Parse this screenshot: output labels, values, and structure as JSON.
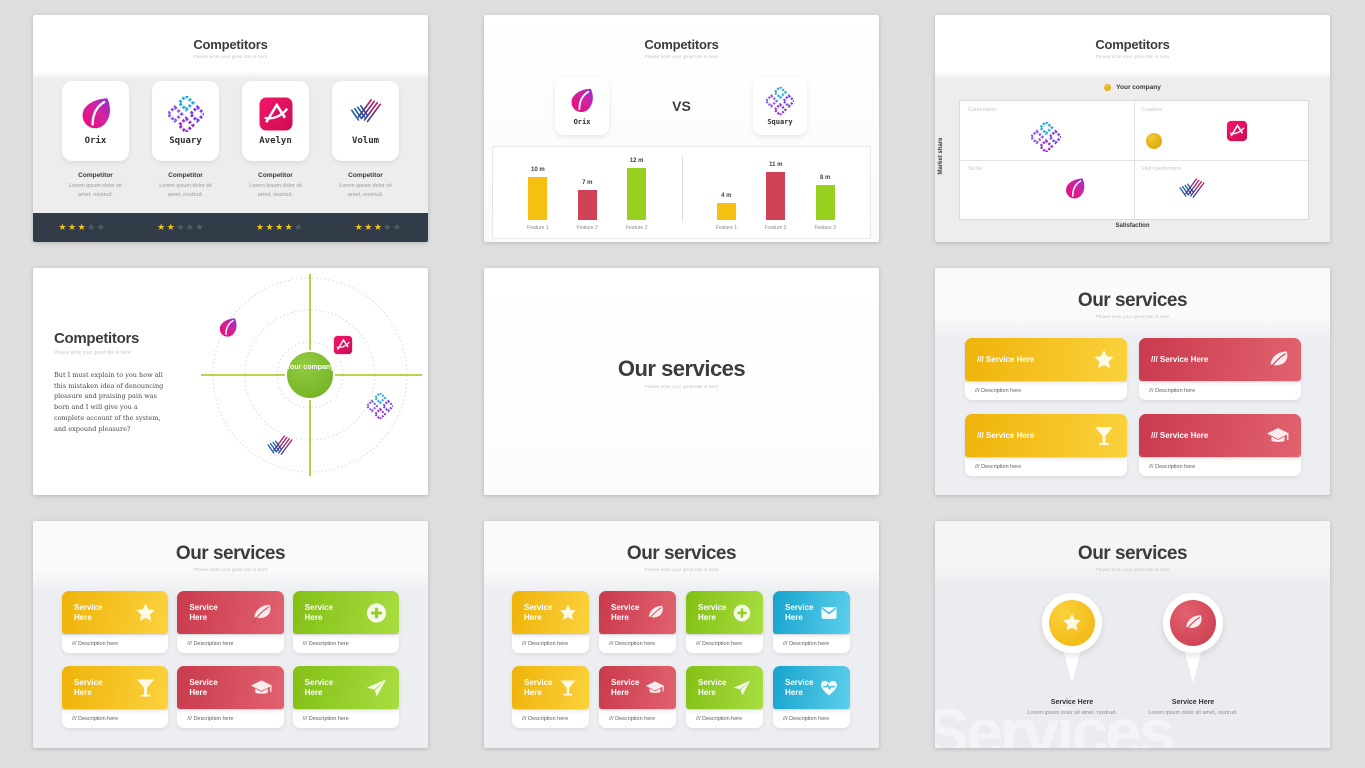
{
  "page": {
    "background": "#dedede"
  },
  "colors": {
    "yellow": "#f3ba10",
    "red": "#d2414f",
    "green": "#94ce20",
    "blue": "#2bb7df",
    "dark_bar": "#323c49",
    "star_filled": "#f2c319",
    "star_empty": "#535e6c",
    "legend_dot": "#e2a912",
    "company_green": "#7ab82a",
    "axis_line_green": "#a9c414"
  },
  "slide1": {
    "title": "Competitors",
    "subtitle": "Please write your great title is here",
    "stars_max": 5,
    "competitors": [
      {
        "name": "Orix",
        "logo": "orix",
        "heading": "Competitor",
        "description": "Lorem ipsum dolor sit amet, nostrud.",
        "stars": 3
      },
      {
        "name": "Squary",
        "logo": "squary",
        "heading": "Competitor",
        "description": "Lorem ipsum dolor sit amet, nostrud.",
        "stars": 2
      },
      {
        "name": "Avelyn",
        "logo": "avelyn",
        "heading": "Competitor",
        "description": "Lorem ipsum dolor sit amet, nostrud.",
        "stars": 4
      },
      {
        "name": "Volum",
        "logo": "volum",
        "heading": "Competitor",
        "description": "Lorem ipsum dolor sit amet, nostrud.",
        "stars": 3
      }
    ]
  },
  "slide2": {
    "title": "Competitors",
    "subtitle": "Please write your great title is here",
    "vs_label": "VS",
    "contenders": [
      {
        "name": "Orix",
        "logo": "orix"
      },
      {
        "name": "Squary",
        "logo": "squary"
      }
    ],
    "chart": {
      "type": "bar",
      "unit": "m",
      "groups": [
        {
          "company": "Orix",
          "bars": [
            {
              "label": "Feature 1",
              "value": 10,
              "value_label": "10 m",
              "color": "yellow"
            },
            {
              "label": "Feature 2",
              "value": 7,
              "value_label": "7 m",
              "color": "red"
            },
            {
              "label": "Feature 3",
              "value": 12,
              "value_label": "12 m",
              "color": "green"
            }
          ]
        },
        {
          "company": "Squary",
          "bars": [
            {
              "label": "Feature 1",
              "value": 4,
              "value_label": "4 m",
              "color": "yellow"
            },
            {
              "label": "Feature 2",
              "value": 11,
              "value_label": "11 m",
              "color": "red"
            },
            {
              "label": "Feature 3",
              "value": 8,
              "value_label": "8 m",
              "color": "green"
            }
          ]
        }
      ]
    }
  },
  "slide3": {
    "title": "Competitors",
    "subtitle": "Please write your great title is here",
    "legend_label": "Your company",
    "y_axis_label": "Market share",
    "x_axis_label": "Satisfaction",
    "quadrants": [
      {
        "label": "Contenders",
        "logo": "squary"
      },
      {
        "label": "Leaders",
        "logo": "avelyn",
        "has_marker": true
      },
      {
        "label": "Niche",
        "logo": "orix"
      },
      {
        "label": "High performers",
        "logo": "volum"
      }
    ]
  },
  "slide4": {
    "title": "Competitors",
    "subtitle": "Please write your great title is here",
    "body": "But I must explain to you how all this mistaken idea of denouncing pleasure and praising pain was born and I will give you a complete account of the system, and expound pleasure?",
    "center_label": "Your company",
    "ring_logos": [
      "orix",
      "avelyn",
      "squary",
      "volum"
    ]
  },
  "slide5": {
    "title": "Our services",
    "subtitle": "Please write your great title is here"
  },
  "slide6": {
    "title": "Our services",
    "subtitle": "Please write your great title is here",
    "cards": [
      {
        "title": "/// Service Here",
        "description": "/// Description here",
        "icon": "star",
        "color": "yellow"
      },
      {
        "title": "/// Service Here",
        "description": "/// Description here",
        "icon": "leaf",
        "color": "red"
      },
      {
        "title": "/// Service Here",
        "description": "/// Description here",
        "icon": "martini",
        "color": "yellow"
      },
      {
        "title": "/// Service Here",
        "description": "/// Description here",
        "icon": "graduation",
        "color": "red"
      }
    ]
  },
  "slide7": {
    "title": "Our services",
    "subtitle": "Please write your great title is here",
    "cards": [
      {
        "title": "Service Here",
        "description": "/// Description here",
        "icon": "star",
        "color": "yellow"
      },
      {
        "title": "Service Here",
        "description": "/// Description here",
        "icon": "leaf",
        "color": "red"
      },
      {
        "title": "Service Here",
        "description": "/// Description here",
        "icon": "plus",
        "color": "green"
      },
      {
        "title": "Service Here",
        "description": "/// Description here",
        "icon": "martini",
        "color": "yellow"
      },
      {
        "title": "Service Here",
        "description": "/// Description here",
        "icon": "graduation",
        "color": "red"
      },
      {
        "title": "Service Here",
        "description": "/// Description here",
        "icon": "plane",
        "color": "green"
      }
    ]
  },
  "slide8": {
    "title": "Our services",
    "subtitle": "Please write your great title is here",
    "cards": [
      {
        "title": "Service Here",
        "description": "/// Description here",
        "icon": "star",
        "color": "yellow"
      },
      {
        "title": "Service Here",
        "description": "/// Description here",
        "icon": "leaf",
        "color": "red"
      },
      {
        "title": "Service Here",
        "description": "/// Description here",
        "icon": "plus",
        "color": "green"
      },
      {
        "title": "Service Here",
        "description": "/// Description here",
        "icon": "envelope",
        "color": "blue"
      },
      {
        "title": "Service Here",
        "description": "/// Description here",
        "icon": "martini",
        "color": "yellow"
      },
      {
        "title": "Service Here",
        "description": "/// Description here",
        "icon": "graduation",
        "color": "red"
      },
      {
        "title": "Service Here",
        "description": "/// Description here",
        "icon": "plane",
        "color": "green"
      },
      {
        "title": "Service Here",
        "description": "/// Description here",
        "icon": "heart",
        "color": "blue"
      }
    ]
  },
  "slide9": {
    "title": "Our services",
    "subtitle": "Please write your great title is here",
    "watermark": "Services",
    "pins": [
      {
        "icon": "star",
        "color": "yellow",
        "title": "Service Here",
        "description": "Lorem ipsum dolor sit amet, nostrud."
      },
      {
        "icon": "leaf",
        "color": "red",
        "title": "Service Here",
        "description": "Lorem ipsum dolor sit amet, nostrud."
      }
    ]
  }
}
